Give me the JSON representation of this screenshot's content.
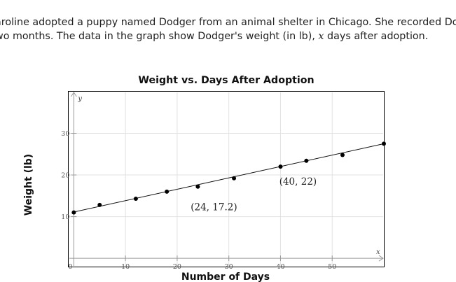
{
  "problem": {
    "line1": "aroline adopted a puppy named Dodger from an animal shelter in Chicago. She recorded Do",
    "line2_prefix": "wo months. The data in the graph show Dodger's weight (in lb), ",
    "line2_var": "x",
    "line2_suffix": " days after adoption."
  },
  "chart_data": {
    "type": "scatter",
    "title": "Weight vs. Days After Adoption",
    "xlabel": "Number of Days",
    "ylabel": "Weight (lb)",
    "x_axis_var": "x",
    "y_axis_var": "y",
    "xlim": [
      -1,
      60
    ],
    "ylim": [
      -2,
      40
    ],
    "grid": true,
    "x_ticks": [
      0,
      10,
      20,
      30,
      40,
      50
    ],
    "x_tick_labels": [
      "0",
      "10",
      "20",
      "30",
      "40",
      "50"
    ],
    "y_ticks": [
      10,
      20,
      30
    ],
    "y_tick_labels": [
      "10",
      "20",
      "30"
    ],
    "points": [
      {
        "x": 0,
        "y": 11
      },
      {
        "x": 5,
        "y": 12.8
      },
      {
        "x": 12,
        "y": 14.3
      },
      {
        "x": 18,
        "y": 16
      },
      {
        "x": 24,
        "y": 17.2
      },
      {
        "x": 31,
        "y": 19.2
      },
      {
        "x": 40,
        "y": 22
      },
      {
        "x": 45,
        "y": 23.4
      },
      {
        "x": 52,
        "y": 24.8
      },
      {
        "x": 60,
        "y": 27.5
      }
    ],
    "fit_line": {
      "x0": 0,
      "y0": 11.1,
      "x1": 60,
      "y1": 27.5
    },
    "annotations": [
      {
        "text": "(24, 17.2)",
        "x": 24,
        "y": 17.2
      },
      {
        "text": "(40, 22)",
        "x": 40,
        "y": 22
      }
    ]
  }
}
